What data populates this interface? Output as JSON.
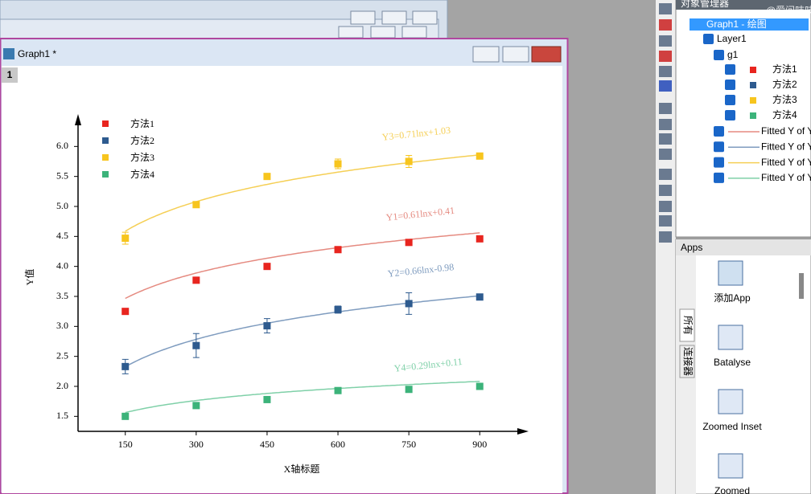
{
  "window": {
    "title": "Graph1 *",
    "layer": "1"
  },
  "chart_data": {
    "type": "scatter",
    "x_label": "X轴标题",
    "y_label": "Y值",
    "x": [
      150,
      300,
      450,
      600,
      750,
      900
    ],
    "xlim": [
      50,
      1000
    ],
    "xticks": [
      150,
      300,
      450,
      600,
      750,
      900
    ],
    "ylim": [
      1.25,
      6.5
    ],
    "yticks": [
      1.5,
      {
        "value": 2,
        "label": "2.0"
      },
      2.5,
      {
        "value": 3,
        "label": "3.0"
      },
      3.5,
      {
        "value": 4,
        "label": "4.0"
      },
      4.5,
      {
        "value": 5,
        "label": "5.0"
      },
      5.5,
      {
        "value": 6,
        "label": "6.0"
      }
    ],
    "series": [
      {
        "name": "方法1",
        "color": "#e8251f",
        "values": [
          3.25,
          3.77,
          4.0,
          4.28,
          4.4,
          4.46
        ]
      },
      {
        "name": "方法2",
        "color": "#2e5b8f",
        "values": [
          2.33,
          2.68,
          3.01,
          3.28,
          3.38,
          3.49
        ],
        "errors": [
          0.12,
          0.2,
          0.12,
          0.06,
          0.18,
          0.03
        ]
      },
      {
        "name": "方法3",
        "color": "#f7c51e",
        "values": [
          4.47,
          5.03,
          5.5,
          5.71,
          5.75,
          5.84
        ],
        "errors": [
          0.1,
          0.03,
          0.03,
          0.08,
          0.1,
          0.02
        ]
      },
      {
        "name": "方法4",
        "color": "#3cb37a",
        "values": [
          1.5,
          1.68,
          1.78,
          1.93,
          1.95,
          2.0
        ]
      }
    ],
    "fits": [
      {
        "label": "Y3=0.71lnx+1.03",
        "a": 0.71,
        "b": 1.03,
        "color": "#f5cf55"
      },
      {
        "label": "Y1=0.61lnx+0.41",
        "a": 0.61,
        "b": 0.41,
        "color": "#e58a80"
      },
      {
        "label": "Y2=0.66lnx-0.98",
        "a": 0.66,
        "b": -0.98,
        "color": "#7f9cbf"
      },
      {
        "label": "Y4=0.29lnx+0.11",
        "a": 0.29,
        "b": 0.11,
        "color": "#7fd0a8"
      }
    ]
  },
  "object_manager": {
    "title": "对象管理器",
    "graph": "Graph1 - 绘图",
    "layer": "Layer1",
    "group": "g1",
    "plots": [
      "方法1",
      "方法2",
      "方法3",
      "方法4"
    ],
    "fitted": [
      "Fitted Y of Y",
      "Fitted Y of Y",
      "Fitted Y of Y",
      "Fitted Y of Y"
    ]
  },
  "apps": {
    "title": "Apps",
    "items": [
      "添加App",
      "Batalyse",
      "Zoomed Inset",
      "Zoomed"
    ],
    "tabs": [
      "所有",
      "连接器"
    ]
  },
  "watermark": "@爱问吱吱"
}
